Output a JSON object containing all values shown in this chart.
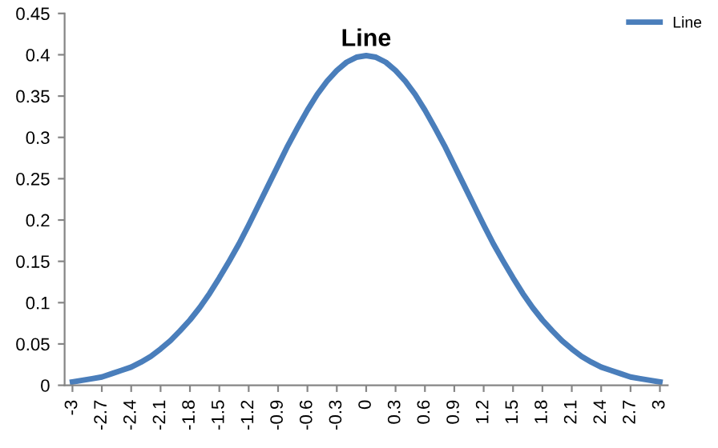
{
  "chart_data": {
    "type": "line",
    "title": "Line",
    "legend": "top right",
    "grid": false,
    "marker": "none",
    "line_style": "solid",
    "x": [
      -3,
      -2.9,
      -2.8,
      -2.7,
      -2.6,
      -2.5,
      -2.4,
      -2.3,
      -2.2,
      -2.1,
      -2,
      -1.9,
      -1.8,
      -1.7,
      -1.6,
      -1.5,
      -1.4,
      -1.3,
      -1.2,
      -1.1,
      -1,
      -0.9,
      -0.8,
      -0.7,
      -0.6,
      -0.5,
      -0.4,
      -0.3,
      -0.2,
      -0.1,
      0,
      0.1,
      0.2,
      0.3,
      0.4,
      0.5,
      0.6,
      0.7,
      0.8,
      0.9,
      1,
      1.1,
      1.2,
      1.3,
      1.4,
      1.5,
      1.6,
      1.7,
      1.8,
      1.9,
      2,
      2.1,
      2.2,
      2.3,
      2.4,
      2.5,
      2.6,
      2.7,
      2.8,
      2.9,
      3
    ],
    "series": [
      {
        "name": "Line",
        "color": "#4a7ebb",
        "values": [
          0.004,
          0.006,
          0.008,
          0.01,
          0.014,
          0.018,
          0.022,
          0.028,
          0.035,
          0.044,
          0.054,
          0.066,
          0.079,
          0.094,
          0.111,
          0.13,
          0.15,
          0.171,
          0.194,
          0.218,
          0.242,
          0.266,
          0.29,
          0.312,
          0.333,
          0.352,
          0.368,
          0.381,
          0.391,
          0.397,
          0.399,
          0.397,
          0.391,
          0.381,
          0.368,
          0.352,
          0.333,
          0.312,
          0.29,
          0.266,
          0.242,
          0.218,
          0.194,
          0.171,
          0.15,
          0.13,
          0.111,
          0.094,
          0.079,
          0.066,
          0.054,
          0.044,
          0.035,
          0.028,
          0.022,
          0.018,
          0.014,
          0.01,
          0.008,
          0.006,
          0.004
        ]
      }
    ],
    "xlim": [
      -3.08,
      3.08
    ],
    "xticks": [
      -3,
      -2.7,
      -2.4,
      -2.1,
      -1.8,
      -1.5,
      -1.2,
      -0.9,
      -0.6,
      -0.3,
      0,
      0.3,
      0.6,
      0.9,
      1.2,
      1.5,
      1.8,
      2.1,
      2.4,
      2.7,
      3
    ],
    "ylim": [
      0,
      0.45
    ],
    "yticks": [
      0,
      0.05,
      0.1,
      0.15,
      0.2,
      0.25,
      0.3,
      0.35,
      0.4,
      0.45
    ]
  }
}
